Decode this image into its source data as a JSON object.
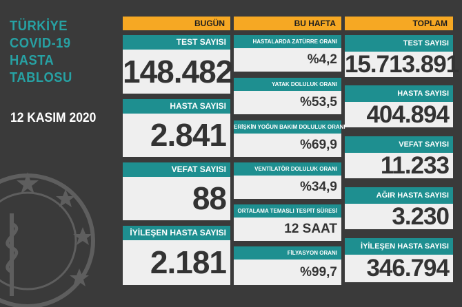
{
  "title": "TÜRKİYE\nCOVID-19\nHASTA\nTABLOSU",
  "date": "12 KASIM 2020",
  "headers": {
    "today": "BUGÜN",
    "week": "BU HAFTA",
    "total": "TOPLAM"
  },
  "today": [
    {
      "label": "TEST SAYISI",
      "value": "148.482"
    },
    {
      "label": "HASTA SAYISI",
      "value": "2.841"
    },
    {
      "label": "VEFAT SAYISI",
      "value": "88"
    },
    {
      "label": "İYİLEŞEN HASTA SAYISI",
      "value": "2.181"
    }
  ],
  "week": [
    {
      "label": "HASTALARDA ZATÜRRE ORANI",
      "value": "%4,2"
    },
    {
      "label": "YATAK DOLULUK ORANI",
      "value": "%53,5"
    },
    {
      "label": "ERİŞKİN YOĞUN BAKIM DOLULUK ORANI",
      "value": "%69,9"
    },
    {
      "label": "VENTİLATÖR DOLULUK ORANI",
      "value": "%34,9"
    },
    {
      "label": "ORTALAMA TEMASLI TESPİT SÜRESİ",
      "value": "12 SAAT"
    },
    {
      "label": "FİLYASYON ORANI",
      "value": "%99,7"
    }
  ],
  "total": [
    {
      "label": "TEST SAYISI",
      "value": "15.713.891"
    },
    {
      "label": "HASTA SAYISI",
      "value": "404.894"
    },
    {
      "label": "VEFAT SAYISI",
      "value": "11.233"
    },
    {
      "label": "AĞIR HASTA SAYISI",
      "value": "3.230"
    },
    {
      "label": "İYİLEŞEN HASTA SAYISI",
      "value": "346.794"
    }
  ],
  "colors": {
    "background": "#3a3a3a",
    "header": "#f6a823",
    "label": "#1e8f90",
    "value_bg": "#efefef",
    "title": "#27a1a3"
  },
  "icons": {
    "emblem": "ministry-emblem-icon"
  }
}
